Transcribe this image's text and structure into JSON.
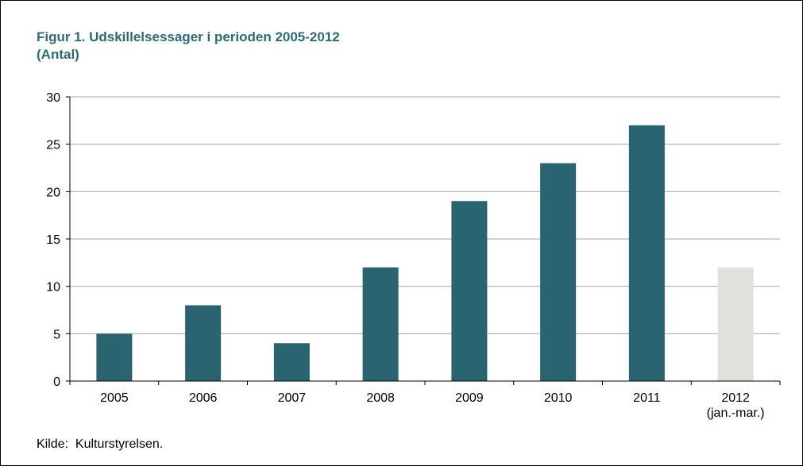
{
  "chart_data": {
    "type": "bar",
    "title_line1": "Figur 1. Udskillelsessager i perioden 2005-2012",
    "title_line2": "(Antal)",
    "categories": [
      "2005",
      "2006",
      "2007",
      "2008",
      "2009",
      "2010",
      "2011",
      "2012"
    ],
    "category_sublabels": [
      "",
      "",
      "",
      "",
      "",
      "",
      "",
      "(jan.-mar.)"
    ],
    "values": [
      5,
      8,
      4,
      12,
      19,
      23,
      27,
      12
    ],
    "bar_colors": [
      "#2a6470",
      "#2a6470",
      "#2a6470",
      "#2a6470",
      "#2a6470",
      "#2a6470",
      "#2a6470",
      "#e1e1dc"
    ],
    "ylim": [
      0,
      30
    ],
    "yticks": [
      0,
      5,
      10,
      15,
      20,
      25,
      30
    ],
    "grid": true,
    "source": "Kilde:  Kulturstyrelsen."
  }
}
